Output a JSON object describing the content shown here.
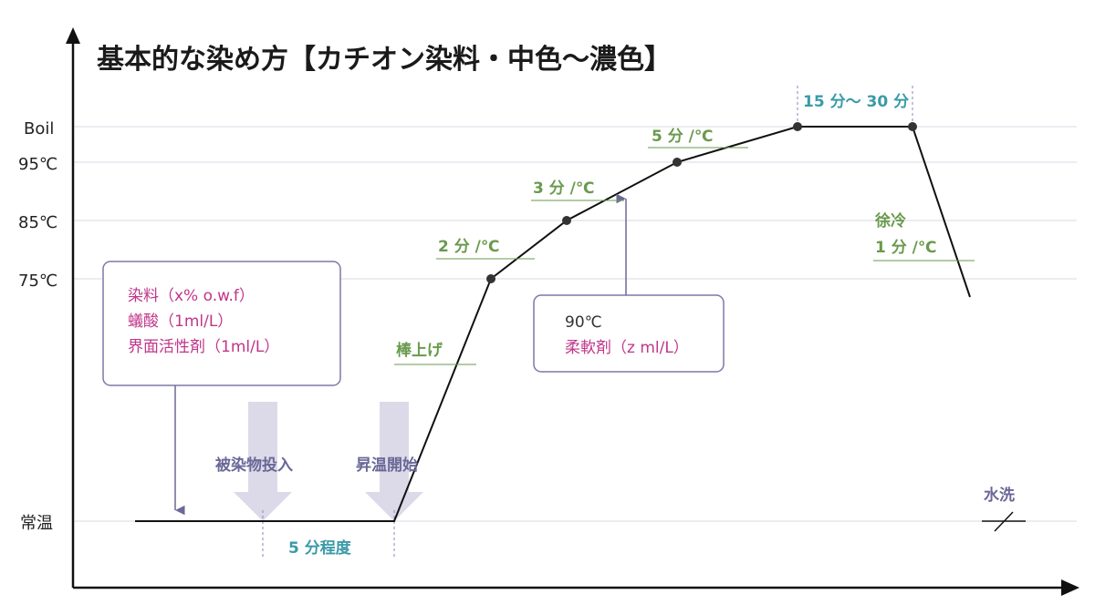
{
  "title": "基本的な染め方【カチオン染料・中色〜濃色】",
  "y_labels": {
    "boil": "Boil",
    "t95": "95℃",
    "t85": "85℃",
    "t75": "75℃",
    "room": "常温"
  },
  "box_left": {
    "line1": "染料（x% o.w.f）",
    "line2": "蟻酸（1ml/L）",
    "line3": "界面活性剤（1ml/L）"
  },
  "box_mid": {
    "line1": "90℃",
    "line2": "柔軟剤（z ml/L）"
  },
  "labels": {
    "insert": "被染物投入",
    "heat_start": "昇温開始",
    "hold5": "5 分程度",
    "bouage": "棒上げ",
    "rate2": "2 分 /℃",
    "rate3": "3 分 /℃",
    "rate5": "5 分 /℃",
    "hold_boil": "15 分〜 30 分",
    "cool_title": "徐冷",
    "cool_rate": "1 分 /℃",
    "rinse": "水洗"
  },
  "colors": {
    "green": "#6a9a4e",
    "teal": "#3a9aa8",
    "purple": "#6b6898",
    "pink": "#c0368a",
    "arrow_fill": "#dcdae8",
    "grid": "#d9d9e4"
  }
}
